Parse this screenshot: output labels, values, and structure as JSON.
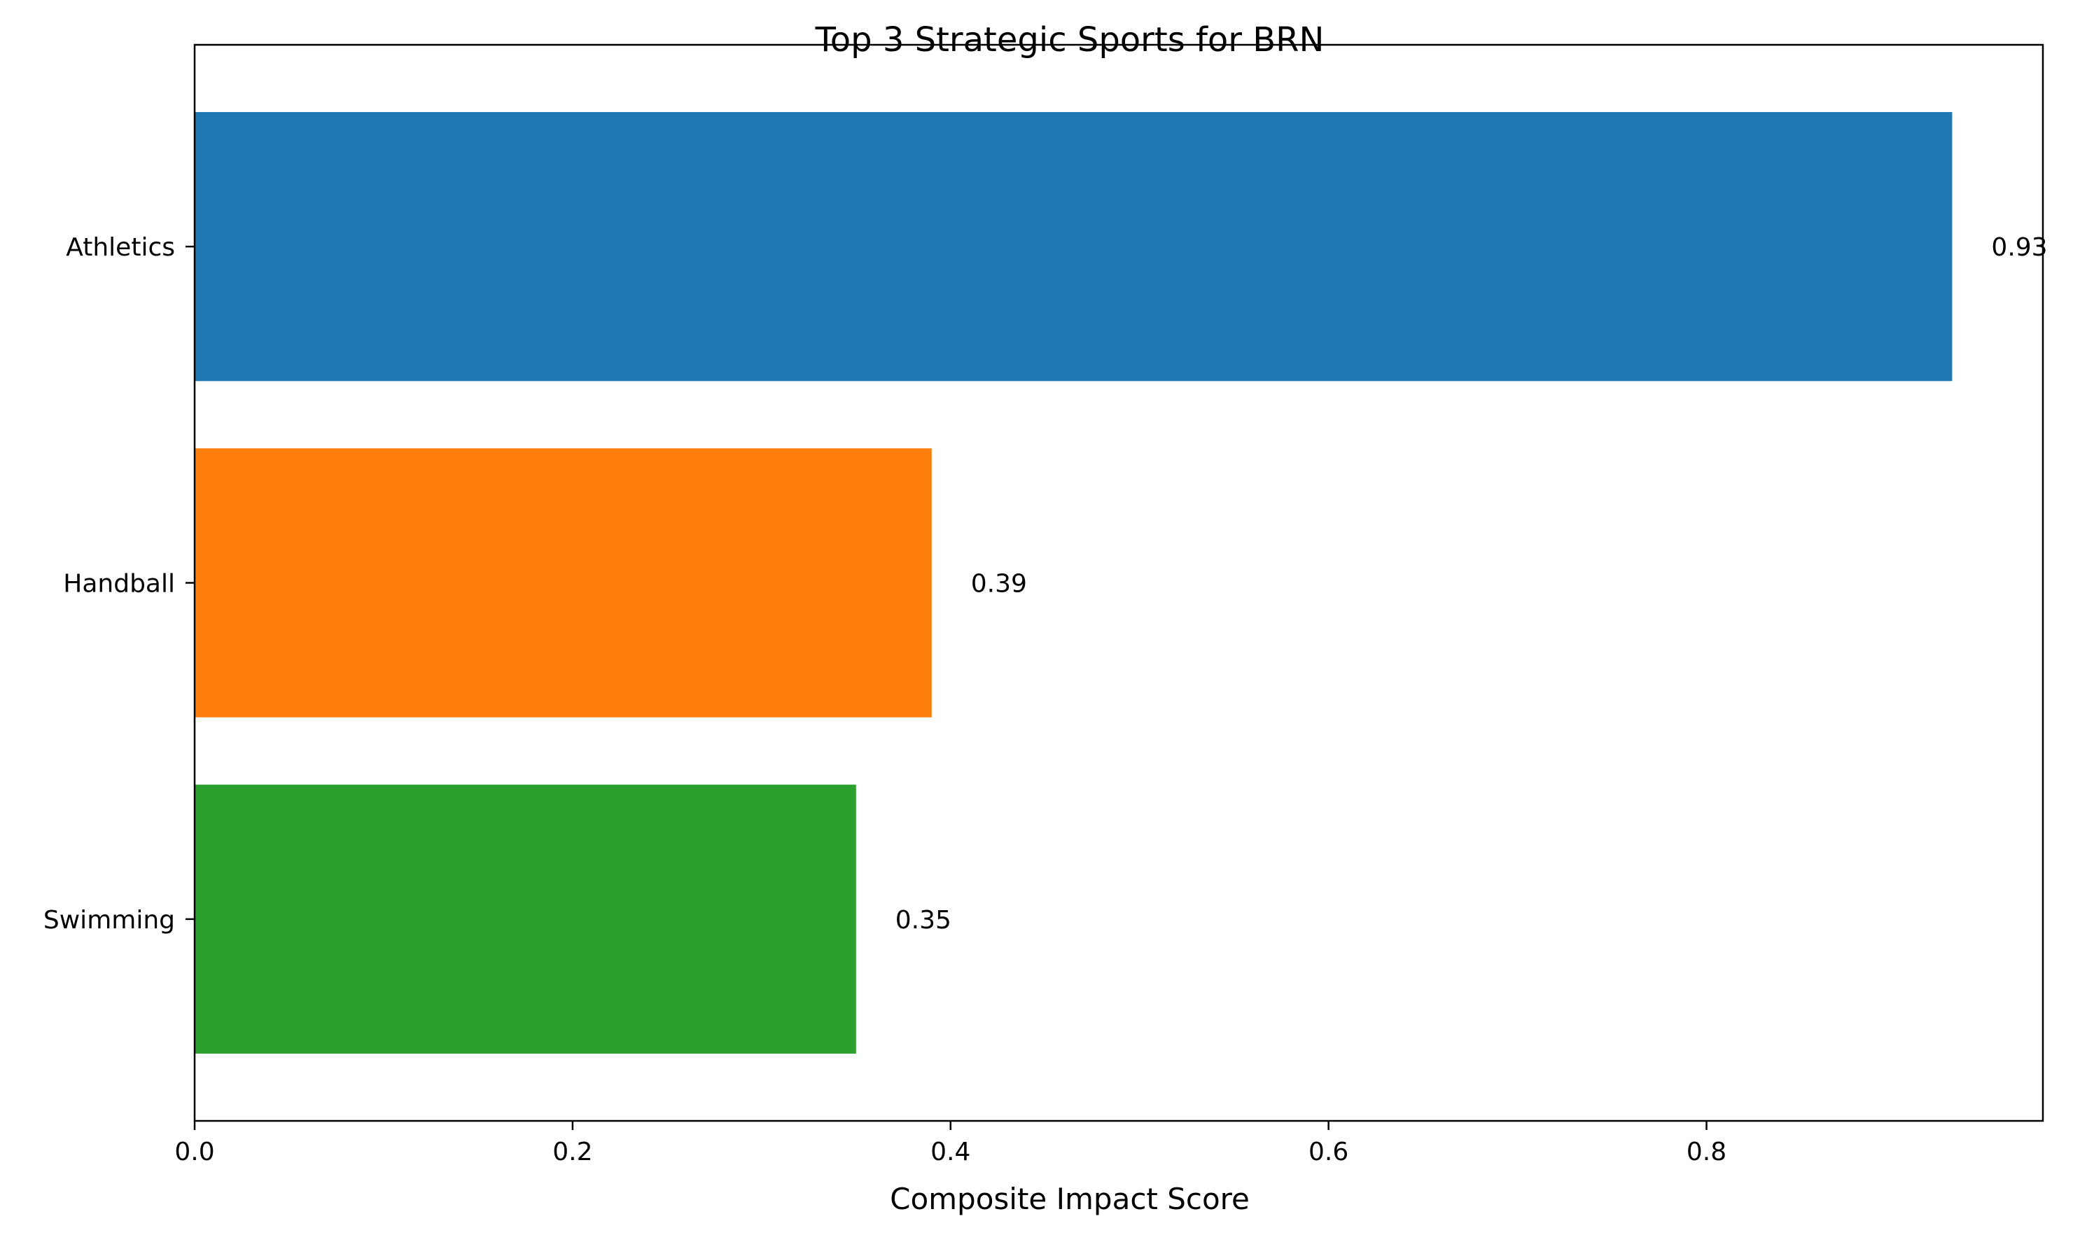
{
  "chart_data": {
    "type": "bar",
    "orientation": "horizontal",
    "title": "Top 3 Strategic Sports for BRN",
    "xlabel": "Composite Impact Score",
    "ylabel": "",
    "categories": [
      "Athletics",
      "Handball",
      "Swimming"
    ],
    "values": [
      0.93,
      0.39,
      0.35
    ],
    "data_labels": [
      "0.93",
      "0.39",
      "0.35"
    ],
    "bar_colors": [
      "#1f77b4",
      "#ff7f0e",
      "#2ca02c"
    ],
    "xlim": [
      0,
      0.978
    ],
    "x_ticks": [
      0.0,
      0.2,
      0.4,
      0.6,
      0.8
    ],
    "x_tick_labels": [
      "0.0",
      "0.2",
      "0.4",
      "0.6",
      "0.8"
    ],
    "grid": false,
    "legend": "none"
  }
}
